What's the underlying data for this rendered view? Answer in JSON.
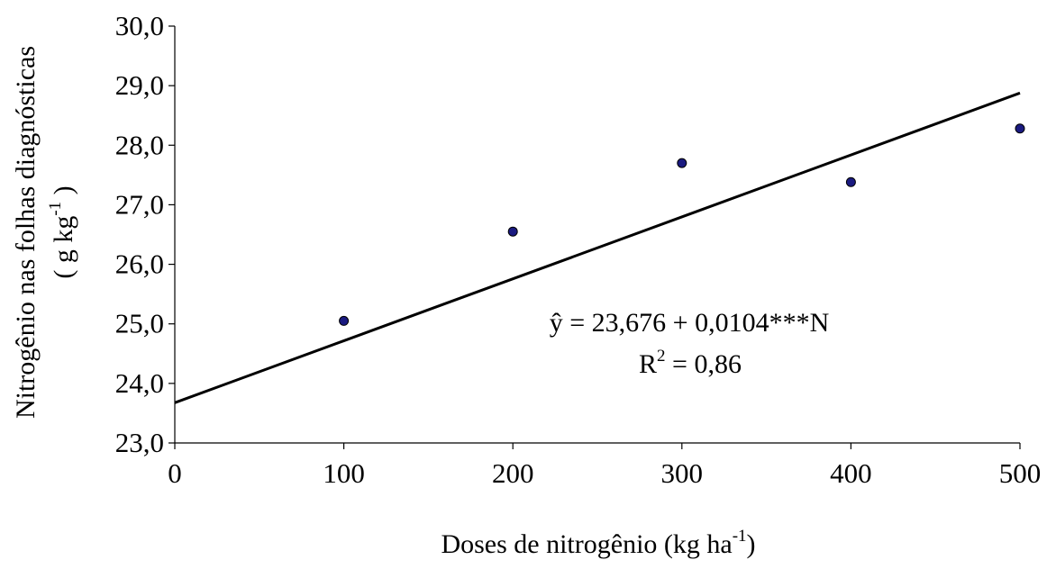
{
  "chart_data": {
    "type": "scatter",
    "title": "",
    "xlabel": "Doses de nitrogênio (kg ha",
    "xlabel_sup": "-1",
    "xlabel_tail": ")",
    "ylabel_line1": "Nitrogênio nas folhas diagnósticas",
    "ylabel_line2": "( g kg",
    "ylabel_line2_sup": "-1",
    "ylabel_line2_tail": " )",
    "xlim": [
      0,
      500
    ],
    "ylim": [
      23,
      30
    ],
    "x_ticks": [
      0,
      100,
      200,
      300,
      400,
      500
    ],
    "x_tick_labels": [
      "0",
      "100",
      "200",
      "300",
      "400",
      "500"
    ],
    "y_ticks": [
      23,
      24,
      25,
      26,
      27,
      28,
      29,
      30
    ],
    "y_tick_labels": [
      "23,0",
      "24,0",
      "25,0",
      "26,0",
      "27,0",
      "28,0",
      "29,0",
      "30,0"
    ],
    "grid": false,
    "legend": "none",
    "series": [
      {
        "type": "scatter",
        "x": [
          100,
          200,
          300,
          400,
          500
        ],
        "y": [
          25.05,
          26.55,
          27.7,
          27.38,
          28.28
        ],
        "color": "#1a1a80"
      },
      {
        "type": "line",
        "x": [
          0,
          500
        ],
        "y": [
          23.676,
          28.876
        ],
        "color": "#000000"
      }
    ],
    "annotations": {
      "equation": "ŷ = 23,676 + 0,0104***N",
      "r2_prefix": "R",
      "r2_sup": "2",
      "r2_value": " = 0,86"
    }
  }
}
